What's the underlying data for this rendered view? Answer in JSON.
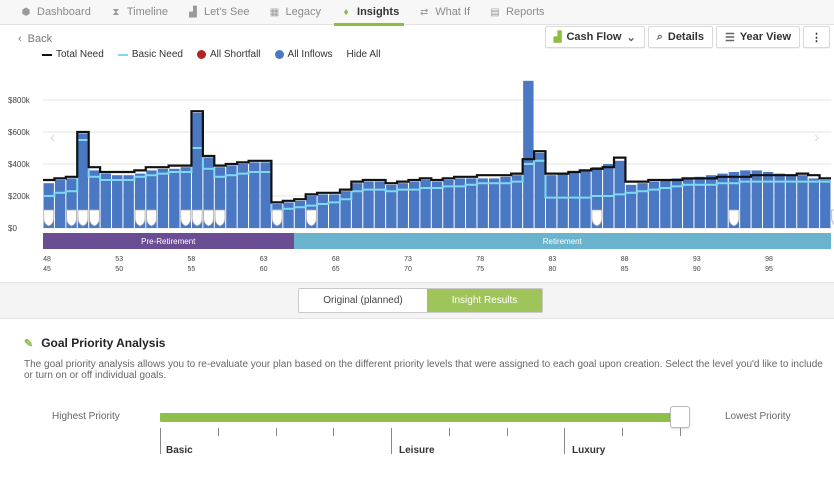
{
  "nav": [
    {
      "label": "Dashboard",
      "icon": "cube-icon",
      "glyph": "⬢",
      "active": false
    },
    {
      "label": "Timeline",
      "icon": "hourglass-icon",
      "glyph": "⧗",
      "active": false
    },
    {
      "label": "Let's See",
      "icon": "bar-chart-icon",
      "glyph": "▟",
      "active": false
    },
    {
      "label": "Legacy",
      "icon": "tree-icon",
      "glyph": "▦",
      "active": false
    },
    {
      "label": "Insights",
      "icon": "lightbulb-icon",
      "glyph": "♦",
      "active": true
    },
    {
      "label": "What If",
      "icon": "shuffle-icon",
      "glyph": "⇄",
      "active": false
    },
    {
      "label": "Reports",
      "icon": "document-icon",
      "glyph": "▤",
      "active": false
    }
  ],
  "back_label": "Back",
  "toolbar": {
    "cashflow": "Cash Flow",
    "details": "Details",
    "yearview": "Year View"
  },
  "legend": {
    "total_need": "Total Need",
    "basic_need": "Basic Need",
    "all_shortfall": "All Shortfall",
    "all_inflows": "All Inflows",
    "hide_all": "Hide All"
  },
  "colors": {
    "accent": "#8bbd3f",
    "inflow": "#4a78c2",
    "basic": "#7fd8f2",
    "total": "#111111",
    "shortfall": "#b22424",
    "pre": "#6b4d93",
    "ret": "#6ab3cd"
  },
  "chart_data": {
    "type": "bar",
    "ylabels": [
      "$800k",
      "$600k",
      "$400k",
      "$200k",
      "$0"
    ],
    "ylim": [
      0,
      900000
    ],
    "yticks": [
      0,
      200000,
      400000,
      600000,
      800000
    ],
    "inflows": [
      280,
      300,
      310,
      590,
      360,
      340,
      330,
      330,
      340,
      360,
      370,
      370,
      380,
      720,
      440,
      380,
      390,
      400,
      410,
      410,
      150,
      160,
      170,
      200,
      210,
      210,
      230,
      280,
      290,
      290,
      270,
      280,
      290,
      300,
      290,
      300,
      310,
      310,
      310,
      310,
      320,
      330,
      920,
      470,
      330,
      340,
      350,
      360,
      380,
      400,
      420,
      270,
      280,
      290,
      300,
      310,
      310,
      320,
      330,
      340,
      350,
      360,
      360,
      350,
      340,
      330,
      330,
      310,
      300
    ],
    "total_need": [
      300,
      310,
      320,
      600,
      380,
      350,
      350,
      350,
      360,
      380,
      380,
      390,
      390,
      730,
      450,
      390,
      400,
      410,
      420,
      420,
      160,
      170,
      180,
      210,
      220,
      220,
      240,
      290,
      300,
      300,
      280,
      290,
      300,
      310,
      300,
      310,
      320,
      320,
      330,
      330,
      330,
      340,
      430,
      480,
      340,
      340,
      350,
      360,
      370,
      380,
      440,
      290,
      290,
      300,
      300,
      300,
      310,
      310,
      310,
      320,
      320,
      320,
      330,
      330,
      330,
      330,
      340,
      330,
      310
    ],
    "basic_need": [
      200,
      220,
      230,
      550,
      320,
      300,
      300,
      300,
      320,
      330,
      340,
      350,
      350,
      500,
      370,
      320,
      330,
      340,
      350,
      350,
      110,
      120,
      130,
      140,
      150,
      160,
      180,
      230,
      240,
      240,
      230,
      240,
      240,
      250,
      250,
      260,
      260,
      270,
      280,
      280,
      280,
      290,
      400,
      420,
      190,
      190,
      190,
      190,
      200,
      200,
      210,
      220,
      230,
      240,
      250,
      260,
      270,
      270,
      270,
      280,
      280,
      290,
      290,
      290,
      290,
      290,
      290,
      290,
      290
    ],
    "goal_markers": [
      0,
      2,
      3,
      4,
      8,
      9,
      12,
      13,
      14,
      15,
      20,
      23,
      48,
      60,
      69
    ],
    "x_top": [
      "48",
      "53",
      "58",
      "63",
      "68",
      "73",
      "78",
      "83",
      "88",
      "93",
      "98"
    ],
    "x_bottom": [
      "45",
      "50",
      "55",
      "60",
      "65",
      "70",
      "75",
      "80",
      "85",
      "90",
      "95"
    ],
    "phases": [
      {
        "label": "Pre-Retirement",
        "fraction": 0.318
      },
      {
        "label": "Retirement",
        "fraction": 0.682
      }
    ]
  },
  "toggle": {
    "original": "Original (planned)",
    "insight": "Insight Results"
  },
  "gpa": {
    "title": "Goal Priority Analysis",
    "description": "The goal priority analysis allows you to re-evaluate your plan based on the different priority levels that were assigned to each goal upon creation. Select the level you'd like to include or turn on or off individual goals.",
    "highest": "Highest Priority",
    "lowest": "Lowest Priority",
    "levels": [
      "Basic",
      "Leisure",
      "Luxury"
    ],
    "selected_level_fraction": 1.0
  }
}
